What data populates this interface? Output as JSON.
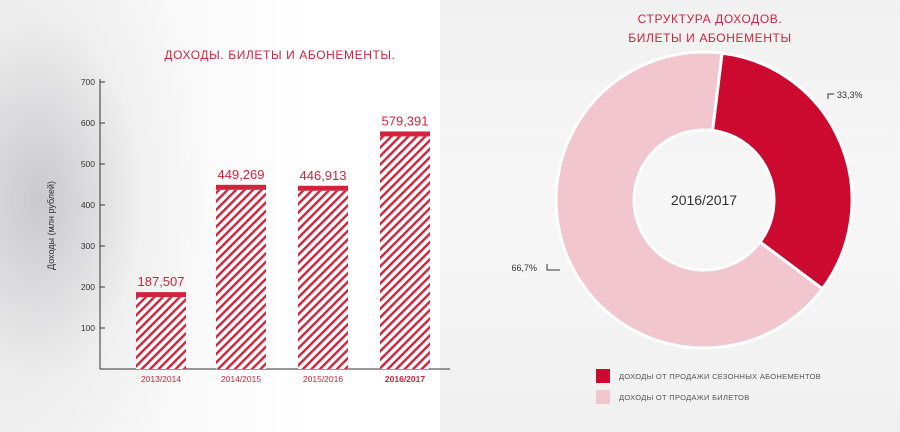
{
  "bar_title": "ДОХОДЫ. БИЛЕТЫ И АБОНЕМЕНТЫ.",
  "pie_title_line1": "СТРУКТУРА ДОХОДОВ.",
  "pie_title_line2": "БИЛЕТЫ И АБОНЕМЕНТЫ",
  "colors": {
    "accent": "#d2233c",
    "seasons": "#cc0a30",
    "tickets": "#f2c6cf",
    "axis": "#333333"
  },
  "chart_data": [
    {
      "type": "bar",
      "title": "ДОХОДЫ. БИЛЕТЫ И АБОНЕМЕНТЫ.",
      "ylabel": "Доходы (млн рублей)",
      "xlabel": "",
      "categories": [
        "2013/2014",
        "2014/2015",
        "2015/2016",
        "2016/2017"
      ],
      "values": [
        187.507,
        449.269,
        446.913,
        579.391
      ],
      "value_labels": [
        "187,507",
        "449,269",
        "446,913",
        "579,391"
      ],
      "highlight_category": "2016/2017",
      "ylim": [
        0,
        700
      ],
      "yticks": [
        100,
        200,
        300,
        400,
        500,
        600,
        700
      ],
      "grid": false
    },
    {
      "type": "pie",
      "title": "СТРУКТУРА ДОХОДОВ. БИЛЕТЫ И АБОНЕМЕНТЫ",
      "center_label": "2016/2017",
      "slices": [
        {
          "name": "ДОХОДЫ ОТ ПРОДАЖИ СЕЗОННЫХ АБОНЕМЕНТОВ",
          "value": 33.3,
          "label": "33,3%",
          "color": "#cc0a30"
        },
        {
          "name": "ДОХОДЫ ОТ ПРОДАЖИ БИЛЕТОВ",
          "value": 66.7,
          "label": "66,7%",
          "color": "#f2c6cf"
        }
      ],
      "legend_position": "bottom"
    }
  ]
}
